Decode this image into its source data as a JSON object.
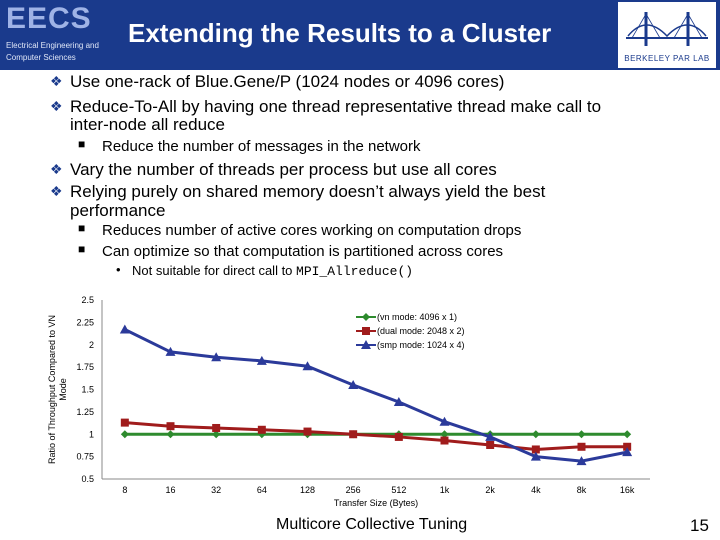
{
  "header": {
    "logo_main": "EECS",
    "logo_sub": "Electrical Engineering and Computer Sciences",
    "title": "Extending the Results to a Cluster",
    "lab_logo_text": "BERKELEY PAR LAB"
  },
  "bullets": [
    {
      "text": "Use one-rack of Blue.Gene/P (1024 nodes or 4096 cores)"
    },
    {
      "text": "Reduce-To-All by having one thread representative thread make call to"
    },
    {
      "text": "inter-node all reduce"
    },
    {
      "sub": "Reduce the number of messages in the network"
    },
    {
      "text": "Vary the number of threads per process but use all cores"
    },
    {
      "text": "Relying purely on shared memory doesn’t always yield the best"
    },
    {
      "text": "performance"
    },
    {
      "sub": "Reduces number of active cores working on computation drops"
    },
    {
      "sub": "Can optimize so that computation is partitioned across cores"
    },
    {
      "subsub_prefix": "Not suitable for direct call to ",
      "subsub_code": "MPI_Allreduce()"
    }
  ],
  "chart_data": {
    "type": "line",
    "xlabel": "Transfer Size (Bytes)",
    "ylabel": "Ratio of Throughput Compared to VN Mode",
    "categories": [
      "8",
      "16",
      "32",
      "64",
      "128",
      "256",
      "512",
      "1k",
      "2k",
      "4k",
      "8k",
      "16k"
    ],
    "ylim": [
      0.5,
      2.5
    ],
    "yticks": [
      "0.5",
      "0.75",
      "1",
      "1.25",
      "1.5",
      "1.75",
      "2",
      "2.25",
      "2.5"
    ],
    "grid": false,
    "legend_position": "top-right",
    "series": [
      {
        "name": "(vn mode: 4096 x 1)",
        "color": "#2e8b2e",
        "marker": "diamond",
        "values": [
          1,
          1,
          1,
          1,
          1,
          1,
          1,
          1,
          1,
          1,
          1,
          1
        ]
      },
      {
        "name": "(dual mode: 2048 x 2)",
        "color": "#a01c1c",
        "marker": "square",
        "values": [
          1.13,
          1.09,
          1.07,
          1.05,
          1.03,
          1.0,
          0.97,
          0.93,
          0.88,
          0.83,
          0.86,
          0.86
        ]
      },
      {
        "name": "(smp mode: 1024 x 4)",
        "color": "#2b3a9a",
        "marker": "triangle",
        "values": [
          2.17,
          1.92,
          1.86,
          1.82,
          1.76,
          1.55,
          1.36,
          1.14,
          0.97,
          0.75,
          0.7,
          0.8
        ]
      }
    ]
  },
  "footer": {
    "center": "Multicore Collective Tuning",
    "page": "15"
  }
}
